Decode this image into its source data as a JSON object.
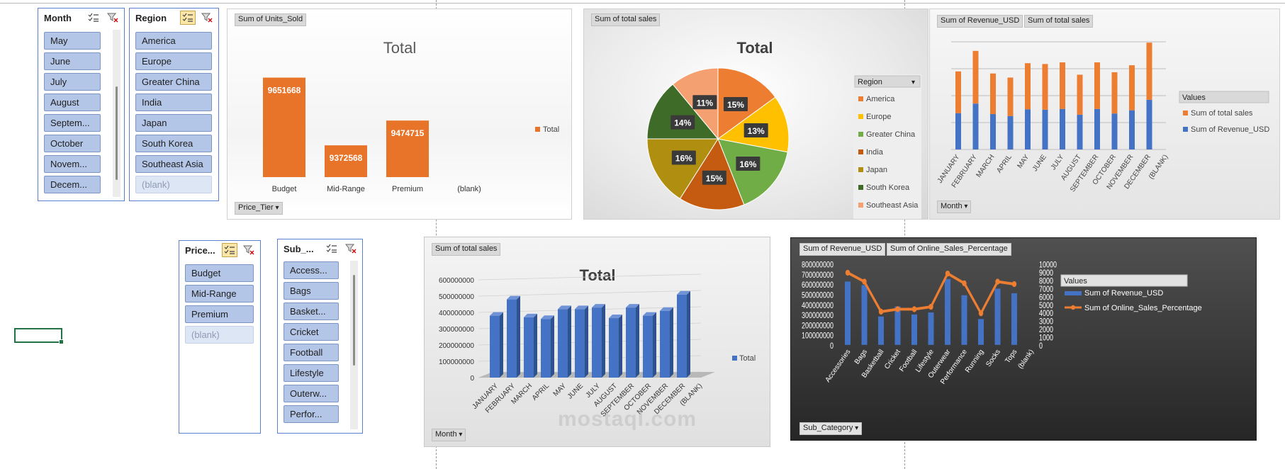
{
  "slicers": {
    "month": {
      "title": "Month",
      "items": [
        "May",
        "June",
        "July",
        "August",
        "Septem...",
        "October",
        "Novem...",
        "Decem..."
      ]
    },
    "region": {
      "title": "Region",
      "items": [
        "America",
        "Europe",
        "Greater China",
        "India",
        "Japan",
        "South Korea",
        "Southeast Asia",
        "(blank)"
      ]
    },
    "price": {
      "title": "Price...",
      "items": [
        "Budget",
        "Mid-Range",
        "Premium",
        "(blank)"
      ]
    },
    "sub": {
      "title": "Sub_...",
      "items": [
        "Access...",
        "Bags",
        "Basket...",
        "Cricket",
        "Football",
        "Lifestyle",
        "Outerw...",
        "Perfor..."
      ]
    }
  },
  "charts": {
    "units": {
      "field_value": "Sum of Units_Sold",
      "axis_button": "Price_Tier",
      "title": "Total",
      "legend": "Total",
      "color": "#e8742a"
    },
    "pie": {
      "field_value": "Sum of total sales",
      "title": "Total",
      "legend_title": "Region"
    },
    "stack": {
      "field_value_1": "Sum of Revenue_USD",
      "field_value_2": "Sum of total sales",
      "axis_button": "Month",
      "legend_title": "Values"
    },
    "bar3d": {
      "field_value": "Sum of total sales",
      "axis_button": "Month",
      "title": "Total",
      "legend": "Total"
    },
    "combo": {
      "field_value_1": "Sum of Revenue_USD",
      "field_value_2": "Sum of Online_Sales_Percentage",
      "axis_button": "Sub_Category",
      "legend_title": "Values"
    }
  },
  "chart_data": [
    {
      "type": "bar",
      "title": "Total",
      "categories": [
        "Budget",
        "Mid-Range",
        "Premium",
        "(blank)"
      ],
      "series": [
        {
          "name": "Total",
          "values": [
            9651668,
            9372568,
            9474715,
            null
          ]
        }
      ],
      "ylim": [
        9300000,
        9700000
      ]
    },
    {
      "type": "pie",
      "title": "Total",
      "labels": [
        "America",
        "Europe",
        "Greater China",
        "India",
        "Japan",
        "South Korea",
        "Southeast Asia"
      ],
      "values": [
        15,
        13,
        16,
        15,
        16,
        14,
        11
      ],
      "colors": [
        "#ed7d31",
        "#ffc000",
        "#70ad47",
        "#c55a11",
        "#b08e0f",
        "#3e6b27",
        "#f4a070"
      ]
    },
    {
      "type": "bar",
      "categories": [
        "JANUARY",
        "FEBRUARY",
        "MARCH",
        "APRIL",
        "MAY",
        "JUNE",
        "JULY",
        "AUGUST",
        "SEPTEMBER",
        "OCTOBER",
        "NOVEMBER",
        "DECEMBER",
        "(BLANK)"
      ],
      "series": [
        {
          "name": "Sum of Revenue_USD",
          "values": [
            190,
            240,
            185,
            175,
            210,
            208,
            212,
            182,
            212,
            188,
            205,
            260,
            null
          ],
          "color": "#4472c4"
        },
        {
          "name": "Sum of total sales",
          "values": [
            190,
            240,
            185,
            175,
            210,
            208,
            212,
            182,
            212,
            188,
            205,
            260,
            null
          ],
          "color": "#ed7d31"
        }
      ]
    },
    {
      "type": "bar",
      "title": "Total",
      "categories": [
        "JANUARY",
        "FEBRUARY",
        "MARCH",
        "APRIL",
        "MAY",
        "JUNE",
        "JULY",
        "AUGUST",
        "SEPTEMBER",
        "OCTOBER",
        "NOVEMBER",
        "DECEMBER",
        "(BLANK)"
      ],
      "series": [
        {
          "name": "Total",
          "values": [
            380000000,
            480000000,
            370000000,
            360000000,
            420000000,
            420000000,
            430000000,
            365000000,
            430000000,
            380000000,
            410000000,
            510000000,
            null
          ]
        }
      ],
      "ylim": [
        0,
        600000000
      ],
      "yticks": [
        "0",
        "100000000",
        "200000000",
        "300000000",
        "400000000",
        "500000000",
        "600000000"
      ]
    },
    {
      "type": "bar",
      "categories": [
        "Accessories",
        "Bags",
        "Basketball",
        "Cricket",
        "Football",
        "Lifestyle",
        "Outerwear",
        "Performance",
        "Running",
        "Socks",
        "Tops",
        "(blank)"
      ],
      "series": [
        {
          "name": "Sum of Revenue_USD",
          "values": [
            625000000,
            590000000,
            280000000,
            380000000,
            300000000,
            320000000,
            650000000,
            490000000,
            255000000,
            555000000,
            510000000,
            null
          ],
          "color": "#4472c4"
        },
        {
          "name": "Sum of Online_Sales_Percentage",
          "values": [
            8900,
            7800,
            4100,
            4400,
            4400,
            4700,
            8800,
            7600,
            3900,
            7800,
            7500,
            null
          ],
          "color": "#ed7d31"
        }
      ],
      "ylim": [
        0,
        800000000
      ],
      "y2lim": [
        0,
        10000
      ],
      "yticks": [
        "0",
        "100000000",
        "200000000",
        "300000000",
        "400000000",
        "500000000",
        "600000000",
        "700000000",
        "800000000"
      ],
      "y2ticks": [
        "0",
        "1000",
        "2000",
        "3000",
        "4000",
        "5000",
        "6000",
        "7000",
        "8000",
        "9000",
        "10000"
      ]
    }
  ]
}
